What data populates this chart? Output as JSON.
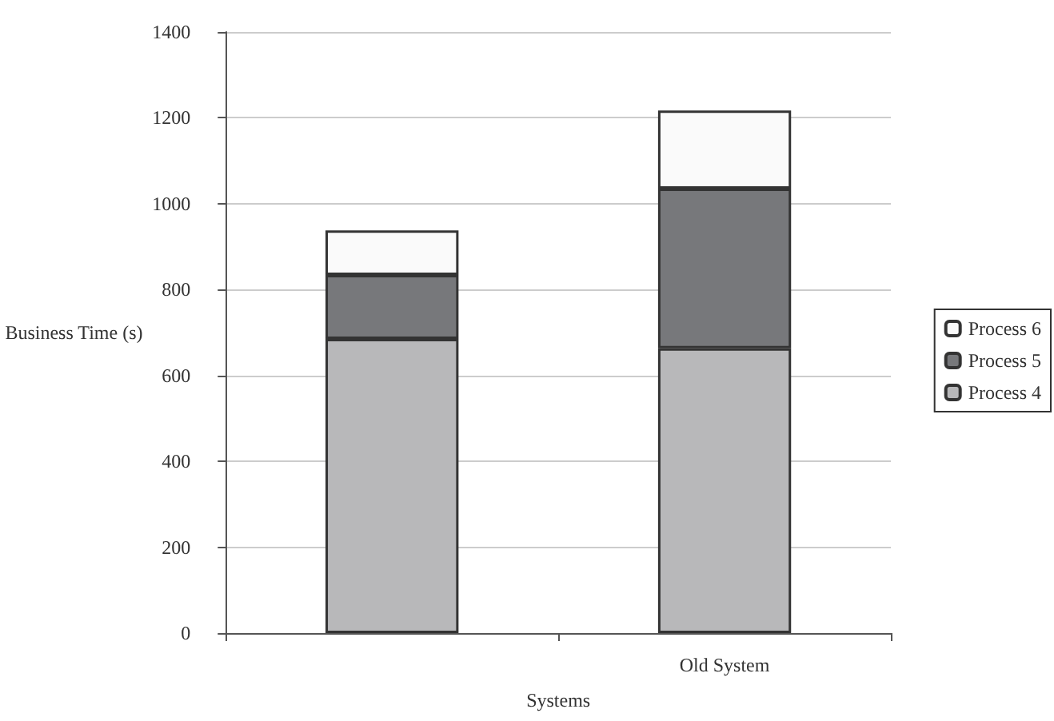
{
  "chart_data": {
    "type": "bar",
    "stacked": true,
    "xlabel": "Systems",
    "ylabel": "Business Time (s)",
    "categories": [
      null,
      "Old System"
    ],
    "series": [
      {
        "name": "Process 4",
        "color": "#b8b8ba",
        "values": [
          685,
          663
        ]
      },
      {
        "name": "Process 5",
        "color": "#77787b",
        "values": [
          149,
          372
        ]
      },
      {
        "name": "Process 6",
        "color": "#fafafa",
        "values": [
          104,
          182
        ]
      }
    ],
    "ylim": [
      0,
      1400
    ],
    "yticks": [
      0,
      200,
      400,
      600,
      800,
      1000,
      1200,
      1400
    ],
    "grid": "y",
    "legend": "right"
  }
}
